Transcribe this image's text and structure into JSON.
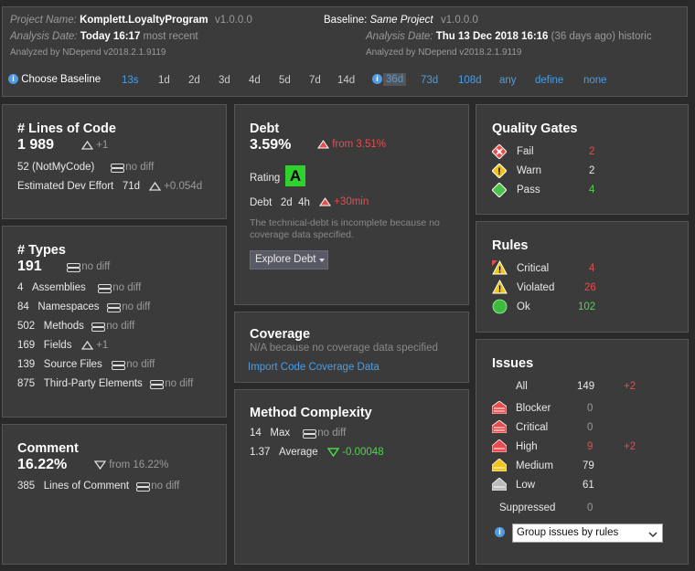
{
  "header": {
    "project_label": "Project Name:",
    "project_name": "Komplett.LoyaltyProgram",
    "version": "v1.0.0.0",
    "analysis_label": "Analysis Date:",
    "analysis_date": "Today 16:17",
    "analysis_tag": "most recent",
    "analyzed_by": "Analyzed by NDepend v2018.2.1.9119",
    "baseline_label": "Baseline:",
    "baseline_name": "Same Project",
    "baseline_version": "v1.0.0.0",
    "baseline_analysis_label": "Analysis Date:",
    "baseline_date": "Thu 13 Dec 2018  16:16",
    "baseline_ago": "(36 days ago) historic",
    "baseline_analyzed_by": "Analyzed by NDepend v2018.2.1.9119",
    "choose_baseline": "Choose Baseline",
    "options_a": [
      "13s",
      "1d",
      "2d",
      "3d",
      "4d",
      "5d",
      "7d",
      "14d"
    ],
    "options_b": [
      "36d",
      "73d",
      "108d",
      "any",
      "define",
      "none"
    ]
  },
  "loc": {
    "title": "# Lines of Code",
    "value": "1 989",
    "delta": "+1",
    "notmycode": "52  (NotMyCode)",
    "nodiff": "no diff",
    "effort_label": "Estimated Dev Effort",
    "effort_value": "71d",
    "effort_delta": "+0.054d"
  },
  "types": {
    "title": "# Types",
    "value": "191",
    "nodiff": "no diff",
    "rows": [
      {
        "num": "4",
        "label": "Assemblies",
        "diff": "no diff"
      },
      {
        "num": "84",
        "label": "Namespaces",
        "diff": "no diff"
      },
      {
        "num": "502",
        "label": "Methods",
        "diff": "no diff"
      },
      {
        "num": "169",
        "label": "Fields",
        "diff": "+1"
      },
      {
        "num": "139",
        "label": "Source Files",
        "diff": "no diff"
      },
      {
        "num": "875",
        "label": "Third-Party Elements",
        "diff": "no diff"
      }
    ]
  },
  "comment": {
    "title": "Comment",
    "value": "16.22%",
    "from": "from 16.22%",
    "lines_num": "385",
    "lines_label": "Lines of Comment",
    "nodiff": "no diff"
  },
  "debt": {
    "title": "Debt",
    "value": "3.59%",
    "from": "from 3.51%",
    "rating_label": "Rating",
    "rating": "A",
    "debt_label": "Debt",
    "debt_d": "2d",
    "debt_h": "4h",
    "debt_delta": "+30min",
    "note1": "The technical-debt is incomplete because no",
    "note2": "coverage data specified.",
    "explore": "Explore Debt"
  },
  "coverage": {
    "title": "Coverage",
    "note": "N/A because no coverage data specified",
    "import": "Import Code Coverage Data"
  },
  "complexity": {
    "title": "Method Complexity",
    "max_num": "14",
    "max_label": "Max",
    "nodiff": "no diff",
    "avg_num": "1.37",
    "avg_label": "Average",
    "avg_delta": "-0.00048"
  },
  "quality_gates": {
    "title": "Quality Gates",
    "rows": [
      {
        "label": "Fail",
        "value": "2"
      },
      {
        "label": "Warn",
        "value": "2"
      },
      {
        "label": "Pass",
        "value": "4"
      }
    ]
  },
  "rules": {
    "title": "Rules",
    "rows": [
      {
        "label": "Critical",
        "value": "4"
      },
      {
        "label": "Violated",
        "value": "26"
      },
      {
        "label": "Ok",
        "value": "102"
      }
    ]
  },
  "issues": {
    "title": "Issues",
    "all_label": "All",
    "all_value": "149",
    "all_delta": "+2",
    "rows": [
      {
        "label": "Blocker",
        "value": "0",
        "delta": ""
      },
      {
        "label": "Critical",
        "value": "0",
        "delta": ""
      },
      {
        "label": "High",
        "value": "9",
        "delta": "+2"
      },
      {
        "label": "Medium",
        "value": "79",
        "delta": ""
      },
      {
        "label": "Low",
        "value": "61",
        "delta": ""
      }
    ],
    "suppressed_label": "Suppressed",
    "suppressed_value": "0",
    "group_select": "Group issues by rules"
  },
  "colors": {
    "red": "#e84c4c",
    "green": "#4cd64c",
    "yellow": "#f2c417",
    "link": "#4a9ee8",
    "rating_bg": "#2fd12f"
  }
}
